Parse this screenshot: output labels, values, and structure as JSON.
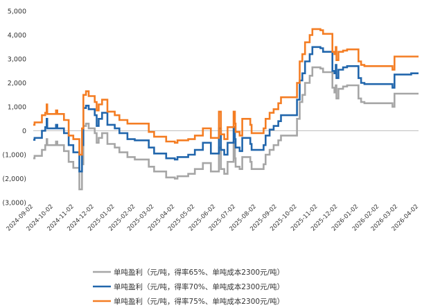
{
  "chart_data": {
    "type": "line",
    "title": "",
    "xlabel": "",
    "ylabel": "",
    "ylim": [
      -3000,
      5000
    ],
    "yticks": [
      5000,
      4000,
      3000,
      2000,
      1000,
      0,
      -1000,
      -2000,
      -3000
    ],
    "ytick_labels": [
      "5,000",
      "4,000",
      "3,000",
      "2,000",
      "1,000",
      "0",
      "(1,000)",
      "(2,000)",
      "(3,000)"
    ],
    "xlim": [
      "2024-09-02",
      "2026-04-02"
    ],
    "xticks": [
      "2024-09-02",
      "2024-10-02",
      "2024-11-02",
      "2024-12-02",
      "2025-01-02",
      "2025-02-02",
      "2025-03-02",
      "2025-04-02",
      "2025-05-02",
      "2025-06-02",
      "2025-07-02",
      "2025-08-02",
      "2025-09-02",
      "2025-10-02",
      "2025-11-02",
      "2025-12-02",
      "2026-01-02",
      "2026-02-02",
      "2026-03-02",
      "2026-04-02"
    ],
    "grid": false,
    "legend_position": "bottom",
    "step": true,
    "series": [
      {
        "name": "单吨盈利（元/吨，得率65%、单吨成本2300元/吨）",
        "color": "#a6a6a6",
        "points": [
          [
            "2024-09-02",
            -1150
          ],
          [
            "2024-09-04",
            -1050
          ],
          [
            "2024-09-15",
            -800
          ],
          [
            "2024-09-20",
            -600
          ],
          [
            "2024-09-22",
            -350
          ],
          [
            "2024-09-23",
            -600
          ],
          [
            "2024-10-06",
            -450
          ],
          [
            "2024-10-08",
            -600
          ],
          [
            "2024-10-18",
            -850
          ],
          [
            "2024-10-25",
            -1300
          ],
          [
            "2024-11-01",
            -1550
          ],
          [
            "2024-11-10",
            -2450
          ],
          [
            "2024-11-14",
            -1400
          ],
          [
            "2024-11-16",
            200
          ],
          [
            "2024-11-20",
            300
          ],
          [
            "2024-11-24",
            100
          ],
          [
            "2024-12-03",
            -100
          ],
          [
            "2024-12-06",
            -500
          ],
          [
            "2024-12-09",
            -300
          ],
          [
            "2024-12-14",
            -100
          ],
          [
            "2024-12-22",
            -550
          ],
          [
            "2025-01-02",
            -700
          ],
          [
            "2025-01-09",
            -900
          ],
          [
            "2025-01-21",
            -1100
          ],
          [
            "2025-02-01",
            -1200
          ],
          [
            "2025-02-22",
            -1500
          ],
          [
            "2025-03-02",
            -1700
          ],
          [
            "2025-03-20",
            -1950
          ],
          [
            "2025-04-02",
            -2000
          ],
          [
            "2025-04-06",
            -1900
          ],
          [
            "2025-04-22",
            -1800
          ],
          [
            "2025-05-02",
            -1600
          ],
          [
            "2025-05-14",
            -1350
          ],
          [
            "2025-05-26",
            -1700
          ],
          [
            "2025-06-07",
            -700
          ],
          [
            "2025-06-10",
            -1600
          ],
          [
            "2025-06-15",
            -1800
          ],
          [
            "2025-06-20",
            -1300
          ],
          [
            "2025-06-29",
            -450
          ],
          [
            "2025-07-01",
            -1150
          ],
          [
            "2025-07-02",
            -1500
          ],
          [
            "2025-07-08",
            -1600
          ],
          [
            "2025-07-12",
            -1100
          ],
          [
            "2025-07-24",
            -1300
          ],
          [
            "2025-07-26",
            -1600
          ],
          [
            "2025-08-13",
            -1400
          ],
          [
            "2025-08-16",
            -1000
          ],
          [
            "2025-08-22",
            -800
          ],
          [
            "2025-08-28",
            -600
          ],
          [
            "2025-09-04",
            -400
          ],
          [
            "2025-09-08",
            -200
          ],
          [
            "2025-10-02",
            500
          ],
          [
            "2025-10-06",
            1200
          ],
          [
            "2025-10-10",
            1500
          ],
          [
            "2025-10-14",
            2000
          ],
          [
            "2025-10-21",
            2300
          ],
          [
            "2025-10-25",
            2650
          ],
          [
            "2025-11-06",
            2600
          ],
          [
            "2025-11-10",
            2450
          ],
          [
            "2025-11-24",
            1800
          ],
          [
            "2025-11-27",
            1600
          ],
          [
            "2025-11-29",
            1900
          ],
          [
            "2025-11-30",
            1350
          ],
          [
            "2025-12-03",
            1750
          ],
          [
            "2025-12-10",
            1850
          ],
          [
            "2025-12-16",
            1900
          ],
          [
            "2026-01-02",
            1350
          ],
          [
            "2026-01-06",
            1200
          ],
          [
            "2026-01-11",
            1150
          ],
          [
            "2026-02-22",
            1000
          ],
          [
            "2026-02-25",
            1550
          ],
          [
            "2026-03-22",
            1550
          ]
        ]
      },
      {
        "name": "单吨盈利（元/吨，得率70%、单吨成本2300元/吨）",
        "color": "#2166ac",
        "points": [
          [
            "2024-09-02",
            -380
          ],
          [
            "2024-09-04",
            -300
          ],
          [
            "2024-09-15",
            0
          ],
          [
            "2024-09-20",
            150
          ],
          [
            "2024-09-22",
            500
          ],
          [
            "2024-09-23",
            100
          ],
          [
            "2024-10-06",
            250
          ],
          [
            "2024-10-08",
            100
          ],
          [
            "2024-10-18",
            -100
          ],
          [
            "2024-10-25",
            -600
          ],
          [
            "2024-11-01",
            -900
          ],
          [
            "2024-11-10",
            -1700
          ],
          [
            "2024-11-14",
            -600
          ],
          [
            "2024-11-16",
            950
          ],
          [
            "2024-11-20",
            1050
          ],
          [
            "2024-11-24",
            900
          ],
          [
            "2024-12-03",
            650
          ],
          [
            "2024-12-06",
            200
          ],
          [
            "2024-12-09",
            500
          ],
          [
            "2024-12-14",
            750
          ],
          [
            "2024-12-22",
            250
          ],
          [
            "2025-01-02",
            100
          ],
          [
            "2025-01-09",
            -100
          ],
          [
            "2025-01-21",
            -350
          ],
          [
            "2025-02-01",
            -400
          ],
          [
            "2025-02-22",
            -700
          ],
          [
            "2025-03-02",
            -950
          ],
          [
            "2025-03-20",
            -1150
          ],
          [
            "2025-04-02",
            -1200
          ],
          [
            "2025-04-06",
            -1100
          ],
          [
            "2025-04-22",
            -1000
          ],
          [
            "2025-05-02",
            -800
          ],
          [
            "2025-05-14",
            -500
          ],
          [
            "2025-05-26",
            -950
          ],
          [
            "2025-06-07",
            100
          ],
          [
            "2025-06-10",
            -800
          ],
          [
            "2025-06-15",
            -1000
          ],
          [
            "2025-06-20",
            -500
          ],
          [
            "2025-06-29",
            150
          ],
          [
            "2025-07-01",
            -350
          ],
          [
            "2025-07-02",
            -700
          ],
          [
            "2025-07-08",
            -850
          ],
          [
            "2025-07-12",
            -300
          ],
          [
            "2025-07-24",
            -550
          ],
          [
            "2025-07-26",
            -800
          ],
          [
            "2025-08-13",
            -600
          ],
          [
            "2025-08-16",
            -200
          ],
          [
            "2025-08-22",
            50
          ],
          [
            "2025-08-28",
            200
          ],
          [
            "2025-09-04",
            400
          ],
          [
            "2025-09-08",
            650
          ],
          [
            "2025-10-02",
            1300
          ],
          [
            "2025-10-06",
            2100
          ],
          [
            "2025-10-10",
            2400
          ],
          [
            "2025-10-14",
            2900
          ],
          [
            "2025-10-21",
            3200
          ],
          [
            "2025-10-25",
            3500
          ],
          [
            "2025-11-06",
            3450
          ],
          [
            "2025-11-10",
            3300
          ],
          [
            "2025-11-24",
            2500
          ],
          [
            "2025-11-27",
            2400
          ],
          [
            "2025-11-29",
            2750
          ],
          [
            "2025-11-30",
            2200
          ],
          [
            "2025-12-03",
            2550
          ],
          [
            "2025-12-10",
            2650
          ],
          [
            "2025-12-16",
            2700
          ],
          [
            "2026-01-02",
            2200
          ],
          [
            "2026-01-06",
            2000
          ],
          [
            "2026-01-11",
            1950
          ],
          [
            "2026-02-22",
            1800
          ],
          [
            "2026-02-25",
            2350
          ],
          [
            "2026-03-22",
            2400
          ]
        ]
      },
      {
        "name": "单吨盈利（元/吨，得率75%、单吨成本2300元/吨）",
        "color": "#f47d23",
        "points": [
          [
            "2024-09-02",
            250
          ],
          [
            "2024-09-04",
            350
          ],
          [
            "2024-09-15",
            650
          ],
          [
            "2024-09-20",
            750
          ],
          [
            "2024-09-22",
            1100
          ],
          [
            "2024-09-23",
            700
          ],
          [
            "2024-10-06",
            850
          ],
          [
            "2024-10-08",
            700
          ],
          [
            "2024-10-18",
            450
          ],
          [
            "2024-10-25",
            -200
          ],
          [
            "2024-11-01",
            -350
          ],
          [
            "2024-11-10",
            -1000
          ],
          [
            "2024-11-14",
            100
          ],
          [
            "2024-11-16",
            1500
          ],
          [
            "2024-11-20",
            1650
          ],
          [
            "2024-11-24",
            1450
          ],
          [
            "2024-12-03",
            1200
          ],
          [
            "2024-12-06",
            850
          ],
          [
            "2024-12-09",
            1100
          ],
          [
            "2024-12-14",
            1300
          ],
          [
            "2024-12-22",
            800
          ],
          [
            "2025-01-02",
            650
          ],
          [
            "2025-01-09",
            450
          ],
          [
            "2025-01-21",
            300
          ],
          [
            "2025-02-01",
            300
          ],
          [
            "2025-02-22",
            -50
          ],
          [
            "2025-03-02",
            -250
          ],
          [
            "2025-03-20",
            -450
          ],
          [
            "2025-04-02",
            -500
          ],
          [
            "2025-04-06",
            -400
          ],
          [
            "2025-04-22",
            -350
          ],
          [
            "2025-05-02",
            -200
          ],
          [
            "2025-05-14",
            100
          ],
          [
            "2025-05-26",
            -300
          ],
          [
            "2025-06-07",
            800
          ],
          [
            "2025-06-10",
            -150
          ],
          [
            "2025-06-15",
            -350
          ],
          [
            "2025-06-20",
            150
          ],
          [
            "2025-06-29",
            800
          ],
          [
            "2025-07-01",
            300
          ],
          [
            "2025-07-02",
            -50
          ],
          [
            "2025-07-08",
            -200
          ],
          [
            "2025-07-12",
            500
          ],
          [
            "2025-07-24",
            250
          ],
          [
            "2025-07-26",
            -100
          ],
          [
            "2025-08-13",
            100
          ],
          [
            "2025-08-16",
            500
          ],
          [
            "2025-08-22",
            750
          ],
          [
            "2025-08-28",
            900
          ],
          [
            "2025-09-04",
            1150
          ],
          [
            "2025-09-08",
            1400
          ],
          [
            "2025-10-02",
            2000
          ],
          [
            "2025-10-06",
            2900
          ],
          [
            "2025-10-10",
            3200
          ],
          [
            "2025-10-14",
            3700
          ],
          [
            "2025-10-21",
            4000
          ],
          [
            "2025-10-25",
            4250
          ],
          [
            "2025-11-06",
            4200
          ],
          [
            "2025-11-10",
            4050
          ],
          [
            "2025-11-24",
            3300
          ],
          [
            "2025-11-27",
            3200
          ],
          [
            "2025-11-29",
            3500
          ],
          [
            "2025-11-30",
            2950
          ],
          [
            "2025-12-03",
            3300
          ],
          [
            "2025-12-10",
            3350
          ],
          [
            "2025-12-16",
            3400
          ],
          [
            "2026-01-02",
            2900
          ],
          [
            "2026-01-06",
            2750
          ],
          [
            "2026-01-11",
            2700
          ],
          [
            "2026-02-22",
            2550
          ],
          [
            "2026-02-25",
            3100
          ],
          [
            "2026-03-22",
            3100
          ]
        ]
      }
    ]
  }
}
